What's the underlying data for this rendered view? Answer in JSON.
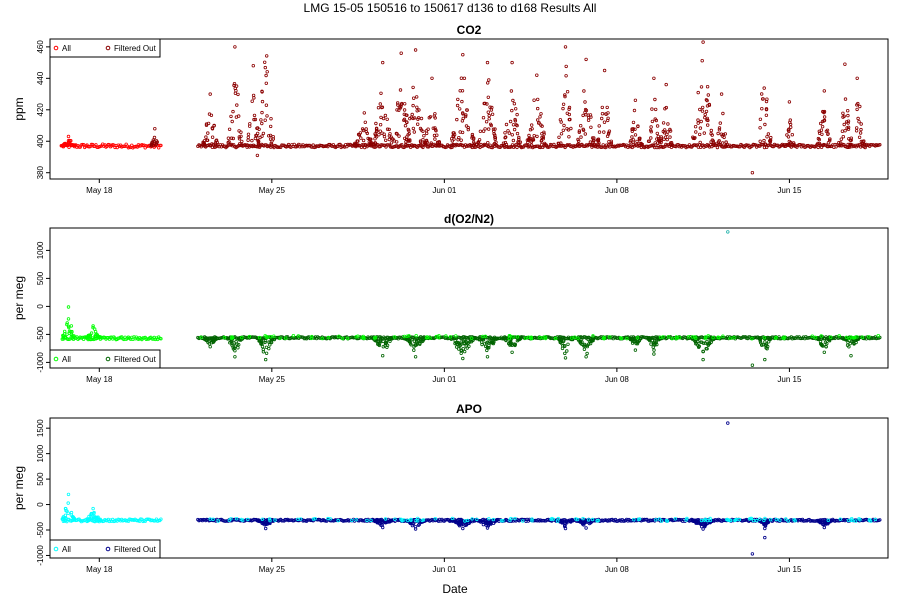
{
  "figure": {
    "title": "LMG   15-05    150516 to 150617    d136 to d168   Results All",
    "xlabel": "Date"
  },
  "chart_data": [
    {
      "type": "scatter",
      "title": "CO2",
      "ylabel": "ppm",
      "xlim": [
        "2015-05-16",
        "2015-06-19"
      ],
      "ylim": [
        376,
        465
      ],
      "yticks": [
        380,
        400,
        420,
        440,
        460
      ],
      "xticks": [
        "2015-05-18",
        "2015-05-25",
        "2015-06-01",
        "2015-06-08",
        "2015-06-15"
      ],
      "xtick_labels": [
        "May 18",
        "May 25",
        "Jun 01",
        "Jun 08",
        "Jun 15"
      ],
      "grid": false,
      "legend_position": "top-left",
      "series": [
        {
          "name": "All",
          "color": "#ff0000",
          "role": "all"
        },
        {
          "name": "Filtered Out",
          "color": "#8b0000",
          "role": "filtered"
        }
      ],
      "segments": [
        {
          "start": "2015-05-16T12:00",
          "end": "2015-05-20T12:00",
          "baseline": 397,
          "spread": 1.2,
          "color": "#ff0000"
        },
        {
          "start": "2015-05-22T00:00",
          "end": "2015-06-18T16:00",
          "baseline": 397,
          "spread": 1.0,
          "color": "#8b0000"
        }
      ],
      "spikes": [
        {
          "t": "2015-05-16T18:00",
          "peak": 403,
          "width": 0.6,
          "color": "#ff0000"
        },
        {
          "t": "2015-05-20T06:00",
          "peak": 408,
          "width": 0.3,
          "color": "#8b0000"
        },
        {
          "t": "2015-05-22T12:00",
          "peak": 430,
          "width": 0.6
        },
        {
          "t": "2015-05-23T12:00",
          "peak": 460,
          "width": 0.6
        },
        {
          "t": "2015-05-24T06:00",
          "peak": 448,
          "width": 0.5
        },
        {
          "t": "2015-05-24T18:00",
          "peak": 470,
          "width": 0.7
        },
        {
          "t": "2015-05-28T18:00",
          "peak": 418,
          "width": 0.8
        },
        {
          "t": "2015-05-29T12:00",
          "peak": 450,
          "width": 0.8
        },
        {
          "t": "2015-05-30T06:00",
          "peak": 456,
          "width": 0.7
        },
        {
          "t": "2015-05-30T20:00",
          "peak": 458,
          "width": 0.8
        },
        {
          "t": "2015-05-31T12:00",
          "peak": 440,
          "width": 0.6
        },
        {
          "t": "2015-06-01T18:00",
          "peak": 455,
          "width": 1.0
        },
        {
          "t": "2015-06-02T18:00",
          "peak": 450,
          "width": 0.8
        },
        {
          "t": "2015-06-03T18:00",
          "peak": 450,
          "width": 0.7
        },
        {
          "t": "2015-06-04T18:00",
          "peak": 442,
          "width": 0.8
        },
        {
          "t": "2015-06-05T22:00",
          "peak": 460,
          "width": 0.6
        },
        {
          "t": "2015-06-06T18:00",
          "peak": 452,
          "width": 0.7
        },
        {
          "t": "2015-06-07T12:00",
          "peak": 445,
          "width": 0.6
        },
        {
          "t": "2015-06-08T18:00",
          "peak": 426,
          "width": 0.5
        },
        {
          "t": "2015-06-09T12:00",
          "peak": 440,
          "width": 0.5
        },
        {
          "t": "2015-06-10T00:00",
          "peak": 436,
          "width": 0.5
        },
        {
          "t": "2015-06-11T12:00",
          "peak": 463,
          "width": 0.9
        },
        {
          "t": "2015-06-12T06:00",
          "peak": 430,
          "width": 0.4
        },
        {
          "t": "2015-06-14T00:00",
          "peak": 466,
          "width": 0.5
        },
        {
          "t": "2015-06-15T00:00",
          "peak": 425,
          "width": 0.4
        },
        {
          "t": "2015-06-16T10:00",
          "peak": 432,
          "width": 0.6
        },
        {
          "t": "2015-06-17T06:00",
          "peak": 449,
          "width": 0.5
        },
        {
          "t": "2015-06-17T18:00",
          "peak": 440,
          "width": 0.6
        }
      ],
      "outliers": [
        {
          "t": "2015-05-24T10:00",
          "v": 391
        },
        {
          "t": "2015-06-13T12:00",
          "v": 380
        }
      ]
    },
    {
      "type": "scatter",
      "title": "d(O2/N2)",
      "ylabel": "per meg",
      "xlim": [
        "2015-05-16",
        "2015-06-19"
      ],
      "ylim": [
        -1100,
        1400
      ],
      "yticks": [
        -1000,
        -500,
        0,
        500,
        1000
      ],
      "xticks": [
        "2015-05-18",
        "2015-05-25",
        "2015-06-01",
        "2015-06-08",
        "2015-06-15"
      ],
      "xtick_labels": [
        "May 18",
        "May 25",
        "Jun 01",
        "Jun 08",
        "Jun 15"
      ],
      "grid": false,
      "legend_position": "bottom-left",
      "series": [
        {
          "name": "All",
          "color": "#00ff00",
          "role": "all"
        },
        {
          "name": "Filtered Out",
          "color": "#006400",
          "role": "filtered"
        }
      ],
      "segments": [
        {
          "start": "2015-05-16T12:00",
          "end": "2015-05-20T12:00",
          "baseline": -570,
          "spread": 25,
          "color": "#00ff00"
        },
        {
          "start": "2015-05-22T00:00",
          "end": "2015-06-18T16:00",
          "baseline": -560,
          "spread": 18,
          "color": "#006400"
        }
      ],
      "spikes": [
        {
          "t": "2015-05-16T18:00",
          "peak": -10,
          "width": 0.5,
          "color": "#00ff00"
        },
        {
          "t": "2015-05-17T18:00",
          "peak": -350,
          "width": 0.6,
          "color": "#00ff00"
        },
        {
          "t": "2015-05-22T12:00",
          "peak": -720,
          "width": 0.6
        },
        {
          "t": "2015-05-23T12:00",
          "peak": -900,
          "width": 0.6
        },
        {
          "t": "2015-05-24T18:00",
          "peak": -950,
          "width": 0.7
        },
        {
          "t": "2015-05-29T12:00",
          "peak": -880,
          "width": 0.8
        },
        {
          "t": "2015-05-30T20:00",
          "peak": -900,
          "width": 0.8
        },
        {
          "t": "2015-06-01T18:00",
          "peak": -930,
          "width": 1.0
        },
        {
          "t": "2015-06-02T18:00",
          "peak": -900,
          "width": 0.8
        },
        {
          "t": "2015-06-03T18:00",
          "peak": -820,
          "width": 0.7
        },
        {
          "t": "2015-06-05T22:00",
          "peak": -920,
          "width": 0.6
        },
        {
          "t": "2015-06-06T18:00",
          "peak": -900,
          "width": 0.7
        },
        {
          "t": "2015-06-08T18:00",
          "peak": -780,
          "width": 0.5
        },
        {
          "t": "2015-06-09T12:00",
          "peak": -850,
          "width": 0.5
        },
        {
          "t": "2015-06-11T12:00",
          "peak": -950,
          "width": 0.9
        },
        {
          "t": "2015-06-14T00:00",
          "peak": -950,
          "width": 0.5
        },
        {
          "t": "2015-06-16T10:00",
          "peak": -820,
          "width": 0.6
        },
        {
          "t": "2015-06-17T12:00",
          "peak": -880,
          "width": 0.6
        }
      ],
      "outliers": [
        {
          "t": "2015-06-12T12:00",
          "v": 1330,
          "color": "#20b2aa"
        },
        {
          "t": "2015-06-13T12:00",
          "v": -1050
        }
      ]
    },
    {
      "type": "scatter",
      "title": "APO",
      "ylabel": "per meg",
      "xlim": [
        "2015-05-16",
        "2015-06-19"
      ],
      "ylim": [
        -1050,
        1700
      ],
      "yticks": [
        -1000,
        -500,
        0,
        500,
        1000,
        1500
      ],
      "xticks": [
        "2015-05-18",
        "2015-05-25",
        "2015-06-01",
        "2015-06-08",
        "2015-06-15"
      ],
      "xtick_labels": [
        "May 18",
        "May 25",
        "Jun 01",
        "Jun 08",
        "Jun 15"
      ],
      "grid": false,
      "legend_position": "bottom-left",
      "series": [
        {
          "name": "All",
          "color": "#00ffff",
          "role": "all"
        },
        {
          "name": "Filtered Out",
          "color": "#00008b",
          "role": "filtered"
        }
      ],
      "segments": [
        {
          "start": "2015-05-16T12:00",
          "end": "2015-05-20T12:00",
          "baseline": -310,
          "spread": 25,
          "color": "#00ffff"
        },
        {
          "start": "2015-05-22T00:00",
          "end": "2015-06-18T16:00",
          "baseline": -310,
          "spread": 18,
          "color": "#00008b"
        }
      ],
      "spikes": [
        {
          "t": "2015-05-16T18:00",
          "peak": 200,
          "width": 0.5,
          "color": "#00ffff"
        },
        {
          "t": "2015-05-17T18:00",
          "peak": -80,
          "width": 0.6,
          "color": "#00ffff"
        },
        {
          "t": "2015-05-24T18:00",
          "peak": -470,
          "width": 0.7
        },
        {
          "t": "2015-05-29T12:00",
          "peak": -450,
          "width": 0.8
        },
        {
          "t": "2015-05-30T20:00",
          "peak": -480,
          "width": 0.8
        },
        {
          "t": "2015-06-01T18:00",
          "peak": -470,
          "width": 1.0
        },
        {
          "t": "2015-06-02T18:00",
          "peak": -460,
          "width": 0.8
        },
        {
          "t": "2015-06-05T22:00",
          "peak": -470,
          "width": 0.6
        },
        {
          "t": "2015-06-06T18:00",
          "peak": -460,
          "width": 0.7
        },
        {
          "t": "2015-06-11T12:00",
          "peak": -480,
          "width": 0.9
        },
        {
          "t": "2015-06-14T00:00",
          "peak": -470,
          "width": 0.5
        },
        {
          "t": "2015-06-16T10:00",
          "peak": -450,
          "width": 0.6
        }
      ],
      "outliers": [
        {
          "t": "2015-06-12T12:00",
          "v": 1600
        },
        {
          "t": "2015-06-13T12:00",
          "v": -970
        },
        {
          "t": "2015-06-14T00:00",
          "v": -650
        }
      ]
    }
  ]
}
